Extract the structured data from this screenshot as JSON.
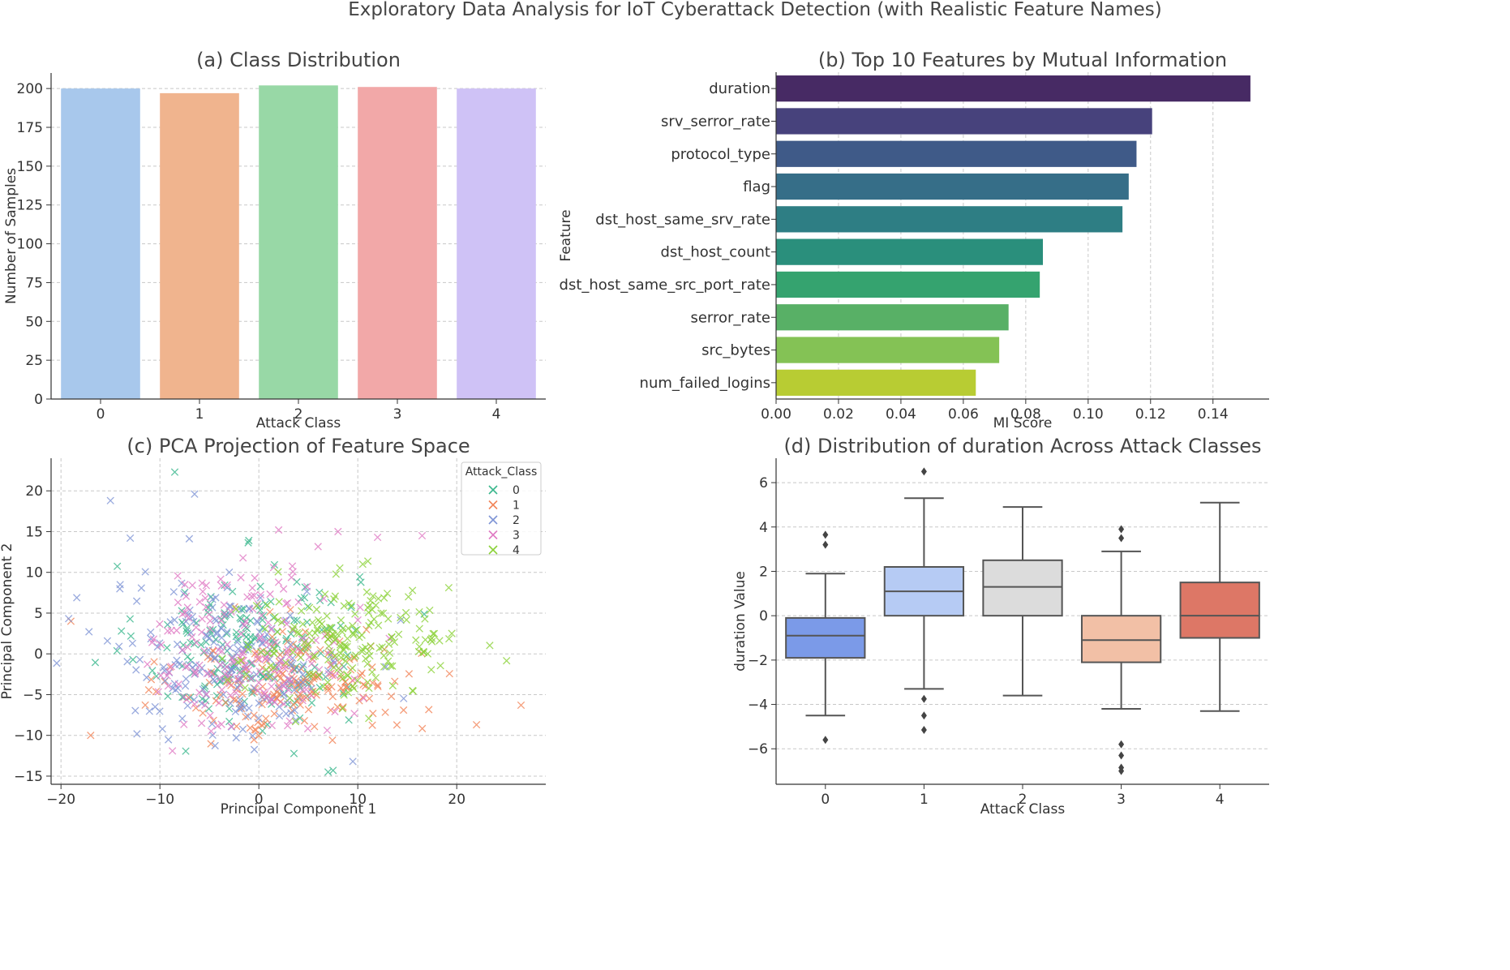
{
  "figure": {
    "title": "Exploratory Data Analysis for IoT Cyberattack Detection (with Realistic Feature Names)"
  },
  "chart_data": [
    {
      "id": "a",
      "type": "bar",
      "title": "(a) Class Distribution",
      "xlabel": "Attack Class",
      "ylabel": "Number of Samples",
      "categories": [
        "0",
        "1",
        "2",
        "3",
        "4"
      ],
      "values": [
        200,
        197,
        202,
        201,
        200
      ],
      "colors": [
        "#a8c8ec",
        "#f0b48e",
        "#98d8a6",
        "#f2a8a8",
        "#cfc2f6"
      ],
      "ylim": [
        0,
        210
      ],
      "yticks": [
        0,
        25,
        50,
        75,
        100,
        125,
        150,
        175,
        200
      ],
      "grid": true
    },
    {
      "id": "b",
      "type": "bar",
      "orientation": "horizontal",
      "title": "(b) Top 10 Features by Mutual Information",
      "xlabel": "MI Score",
      "ylabel": "Feature",
      "categories": [
        "duration",
        "srv_serror_rate",
        "protocol_type",
        "flag",
        "dst_host_same_srv_rate",
        "dst_host_count",
        "dst_host_same_src_port_rate",
        "serror_rate",
        "src_bytes",
        "num_failed_logins"
      ],
      "values": [
        0.152,
        0.1205,
        0.1155,
        0.113,
        0.111,
        0.0855,
        0.0845,
        0.0745,
        0.0715,
        0.064
      ],
      "colors": [
        "#472a64",
        "#47427c",
        "#3f5a88",
        "#366e88",
        "#2e7e84",
        "#2a8f7c",
        "#35a36f",
        "#58b066",
        "#84c255",
        "#b8cc33"
      ],
      "xlim": [
        0,
        0.158
      ],
      "xticks": [
        "0.00",
        "0.02",
        "0.04",
        "0.06",
        "0.08",
        "0.10",
        "0.12",
        "0.14"
      ],
      "grid": true
    },
    {
      "id": "c",
      "type": "scatter",
      "title": "(c) PCA Projection of Feature Space",
      "xlabel": "Principal Component 1",
      "ylabel": "Principal Component 2",
      "xlim": [
        -21,
        29
      ],
      "ylim": [
        -16,
        24
      ],
      "xticks": [
        "−20",
        "−10",
        "0",
        "10",
        "20"
      ],
      "yticks": [
        "−15",
        "−10",
        "−5",
        "0",
        "5",
        "10",
        "15",
        "20"
      ],
      "legend": {
        "title": "Attack_Class",
        "position": "top-right",
        "entries": [
          "0",
          "1",
          "2",
          "3",
          "4"
        ]
      },
      "series": [
        {
          "name": "0",
          "color": "#3cb88e",
          "center": [
            -1,
            1
          ],
          "spread": [
            5.5,
            5
          ],
          "count": 200,
          "extremes": [
            [
              -8.5,
              22.3
            ],
            [
              7,
              -14.5
            ],
            [
              7.5,
              -14.3
            ]
          ]
        },
        {
          "name": "1",
          "color": "#f2865a",
          "center": [
            4,
            -3.5
          ],
          "spread": [
            6,
            3.3
          ],
          "count": 197,
          "extremes": [
            [
              26.5,
              -6.3
            ],
            [
              22,
              -8.7
            ],
            [
              -17,
              -10
            ],
            [
              -19,
              4
            ]
          ]
        },
        {
          "name": "2",
          "color": "#7f95d6",
          "center": [
            -3,
            -1
          ],
          "spread": [
            6,
            5
          ],
          "count": 202,
          "extremes": [
            [
              -15,
              18.8
            ],
            [
              -6.5,
              19.6
            ],
            [
              -13,
              14.2
            ],
            [
              9.5,
              -13.2
            ]
          ]
        },
        {
          "name": "3",
          "color": "#e07bc4",
          "center": [
            -1,
            0.5
          ],
          "spread": [
            5,
            5
          ],
          "count": 201,
          "extremes": [
            [
              2,
              15.2
            ],
            [
              8,
              15
            ],
            [
              16.5,
              14.5
            ],
            [
              12,
              14.3
            ]
          ]
        },
        {
          "name": "4",
          "color": "#8cd23a",
          "center": [
            9,
            1.5
          ],
          "spread": [
            5.5,
            3.5
          ],
          "count": 200,
          "extremes": [
            [
              19.5,
              2.5
            ],
            [
              17.5,
              1.5
            ],
            [
              10.5,
              11
            ]
          ]
        }
      ]
    },
    {
      "id": "d",
      "type": "box",
      "title": "(d) Distribution of duration Across Attack Classes",
      "xlabel": "Attack Class",
      "ylabel": "duration Value",
      "categories": [
        "0",
        "1",
        "2",
        "3",
        "4"
      ],
      "ylim": [
        -7.6,
        7.1
      ],
      "yticks": [
        "−6",
        "−4",
        "−2",
        "0",
        "2",
        "4",
        "6"
      ],
      "boxes": [
        {
          "class": "0",
          "color": "#7b9ae8",
          "whisker_low": -4.5,
          "q1": -1.9,
          "median": -0.9,
          "q3": -0.1,
          "whisker_high": 1.9,
          "outliers": [
            3.65,
            3.2,
            -5.6
          ]
        },
        {
          "class": "1",
          "color": "#b6cbf4",
          "whisker_low": -3.3,
          "q1": 0.0,
          "median": 1.1,
          "q3": 2.2,
          "whisker_high": 5.3,
          "outliers": [
            6.5,
            -3.75,
            -4.5,
            -5.15
          ]
        },
        {
          "class": "2",
          "color": "#dcdcdc",
          "whisker_low": -3.6,
          "q1": 0.0,
          "median": 1.3,
          "q3": 2.5,
          "whisker_high": 4.9,
          "outliers": []
        },
        {
          "class": "3",
          "color": "#f2c0a6",
          "whisker_low": -4.2,
          "q1": -2.1,
          "median": -1.1,
          "q3": 0.0,
          "whisker_high": 2.9,
          "outliers": [
            3.9,
            3.5,
            -5.8,
            -6.3,
            -6.85,
            -7.0
          ]
        },
        {
          "class": "4",
          "color": "#dd7766",
          "whisker_low": -4.3,
          "q1": -1.0,
          "median": 0.0,
          "q3": 1.5,
          "whisker_high": 5.1,
          "outliers": []
        }
      ]
    }
  ]
}
